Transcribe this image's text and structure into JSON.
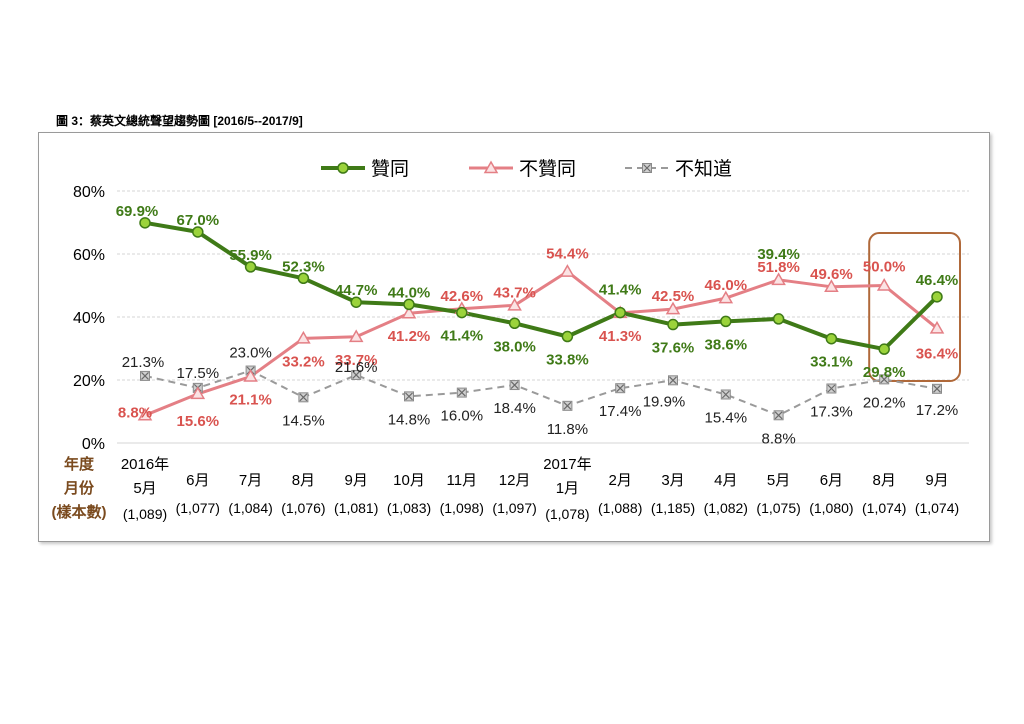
{
  "page_title": "圖 3：蔡英文總統聲望趨勢圖  [2016/5--2017/9]",
  "colors": {
    "approve": "#3f7a17",
    "approve_marker": "#9bd33b",
    "disapprove": "#e47f85",
    "unknown": "#9a9a9a",
    "highlight_box": "#b0693a",
    "axis_label": "#7a4a1e"
  },
  "chart_data": {
    "type": "line",
    "ylim": [
      0,
      80
    ],
    "yticks": [
      "0%",
      "20%",
      "40%",
      "60%",
      "80%"
    ],
    "grid": true,
    "legend_position": "top",
    "row_header": [
      "年度",
      "月份",
      "(樣本數)"
    ],
    "year_labels": [
      {
        "index": 0,
        "label": "2016年"
      },
      {
        "index": 8,
        "label": "2017年"
      }
    ],
    "categories": [
      "5月",
      "6月",
      "7月",
      "8月",
      "9月",
      "10月",
      "11月",
      "12月",
      "1月",
      "2月",
      "3月",
      "4月",
      "5月",
      "6月",
      "8月",
      "9月"
    ],
    "sample_sizes": [
      "(1,089)",
      "(1,077)",
      "(1,084)",
      "(1,076)",
      "(1,081)",
      "(1,083)",
      "(1,098)",
      "(1,097)",
      "(1,078)",
      "(1,088)",
      "(1,185)",
      "(1,082)",
      "(1,075)",
      "(1,080)",
      "(1,074)",
      "(1,074)"
    ],
    "series": [
      {
        "name": "贊同",
        "key": "approve",
        "values": [
          69.9,
          67.0,
          55.9,
          52.3,
          44.7,
          44.0,
          41.4,
          38.0,
          33.8,
          41.4,
          37.6,
          38.6,
          39.4,
          33.1,
          29.8,
          46.4
        ],
        "labels": [
          "69.9%",
          "67.0%",
          "55.9%",
          "52.3%",
          "44.7%",
          "44.0%",
          "41.4%",
          "38.0%",
          "33.8%",
          "41.4%",
          "37.6%",
          "38.6%",
          "39.4%",
          "33.1%",
          "29.8%",
          "46.4%"
        ]
      },
      {
        "name": "不贊同",
        "key": "disapprove",
        "values": [
          8.8,
          15.6,
          21.1,
          33.2,
          33.7,
          41.2,
          42.6,
          43.7,
          54.4,
          41.3,
          42.5,
          46.0,
          51.8,
          49.6,
          50.0,
          36.4
        ],
        "labels": [
          "8.8%",
          "15.6%",
          "21.1%",
          "33.2%",
          "33.7%",
          "41.2%",
          "42.6%",
          "43.7%",
          "54.4%",
          "41.3%",
          "42.5%",
          "46.0%",
          "51.8%",
          "49.6%",
          "50.0%",
          "36.4%"
        ]
      },
      {
        "name": "不知道",
        "key": "unknown",
        "values": [
          21.3,
          17.5,
          23.0,
          14.5,
          21.6,
          14.8,
          16.0,
          18.4,
          11.8,
          17.4,
          19.9,
          15.4,
          8.8,
          17.3,
          20.2,
          17.2
        ],
        "labels": [
          "21.3%",
          "17.5%",
          "23.0%",
          "14.5%",
          "21.6%",
          "14.8%",
          "16.0%",
          "18.4%",
          "11.8%",
          "17.4%",
          "19.9%",
          "15.4%",
          "8.8%",
          "17.3%",
          "20.2%",
          "17.2%"
        ]
      }
    ],
    "highlight_range": [
      14,
      15
    ]
  }
}
